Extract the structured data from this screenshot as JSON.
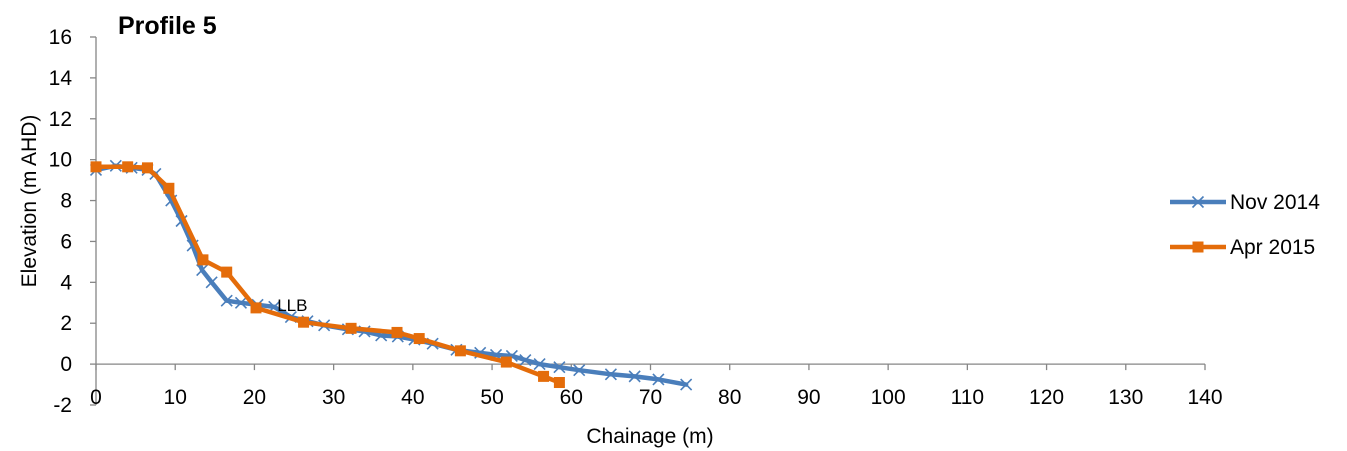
{
  "chart_data": {
    "type": "line",
    "title": "Profile 5",
    "xlabel": "Chainage (m)",
    "ylabel": "Elevation (m AHD)",
    "xlim": [
      0,
      140
    ],
    "ylim": [
      -2,
      16
    ],
    "x_ticks": [
      "0",
      "10",
      "20",
      "30",
      "40",
      "50",
      "60",
      "70",
      "80",
      "90",
      "100",
      "110",
      "120",
      "130",
      "140"
    ],
    "y_ticks": [
      "-2",
      "0",
      "2",
      "4",
      "6",
      "8",
      "10",
      "12",
      "14",
      "16"
    ],
    "grid": false,
    "legend_position": "right",
    "annotations": [
      {
        "text": "LLB",
        "x": 22.5,
        "y": 2.9
      }
    ],
    "series": [
      {
        "name": "Nov 2014",
        "color": "#4a7ebb",
        "marker": "x",
        "points": [
          [
            0,
            9.5
          ],
          [
            2.5,
            9.7
          ],
          [
            4.5,
            9.6
          ],
          [
            6.5,
            9.5
          ],
          [
            7.5,
            9.3
          ],
          [
            9.5,
            8.0
          ],
          [
            10.8,
            7.0
          ],
          [
            12.2,
            5.8
          ],
          [
            13.4,
            4.6
          ],
          [
            14.6,
            4.0
          ],
          [
            16.5,
            3.1
          ],
          [
            18.3,
            3.0
          ],
          [
            20.4,
            2.9
          ],
          [
            22.5,
            2.8
          ],
          [
            24.6,
            2.3
          ],
          [
            26.7,
            2.1
          ],
          [
            28.8,
            1.9
          ],
          [
            31.8,
            1.7
          ],
          [
            33.9,
            1.6
          ],
          [
            36.0,
            1.4
          ],
          [
            38.1,
            1.35
          ],
          [
            40.2,
            1.2
          ],
          [
            42.5,
            1.0
          ],
          [
            45.5,
            0.7
          ],
          [
            48.5,
            0.55
          ],
          [
            50.5,
            0.45
          ],
          [
            52.5,
            0.4
          ],
          [
            54.2,
            0.2
          ],
          [
            56.0,
            0.0
          ],
          [
            58.5,
            -0.15
          ],
          [
            61.0,
            -0.3
          ],
          [
            65.0,
            -0.5
          ],
          [
            68.0,
            -0.6
          ],
          [
            71.0,
            -0.75
          ],
          [
            74.5,
            -1.0
          ]
        ]
      },
      {
        "name": "Apr 2015",
        "color": "#e46c0a",
        "marker": "square",
        "points": [
          [
            0,
            9.65
          ],
          [
            4.0,
            9.65
          ],
          [
            6.5,
            9.6
          ],
          [
            9.2,
            8.6
          ],
          [
            13.5,
            5.1
          ],
          [
            16.5,
            4.5
          ],
          [
            20.2,
            2.75
          ],
          [
            26.2,
            2.05
          ],
          [
            32.2,
            1.75
          ],
          [
            38.0,
            1.55
          ],
          [
            40.8,
            1.25
          ],
          [
            46.0,
            0.65
          ],
          [
            51.8,
            0.1
          ],
          [
            56.5,
            -0.6
          ],
          [
            58.5,
            -0.9
          ]
        ]
      }
    ]
  }
}
